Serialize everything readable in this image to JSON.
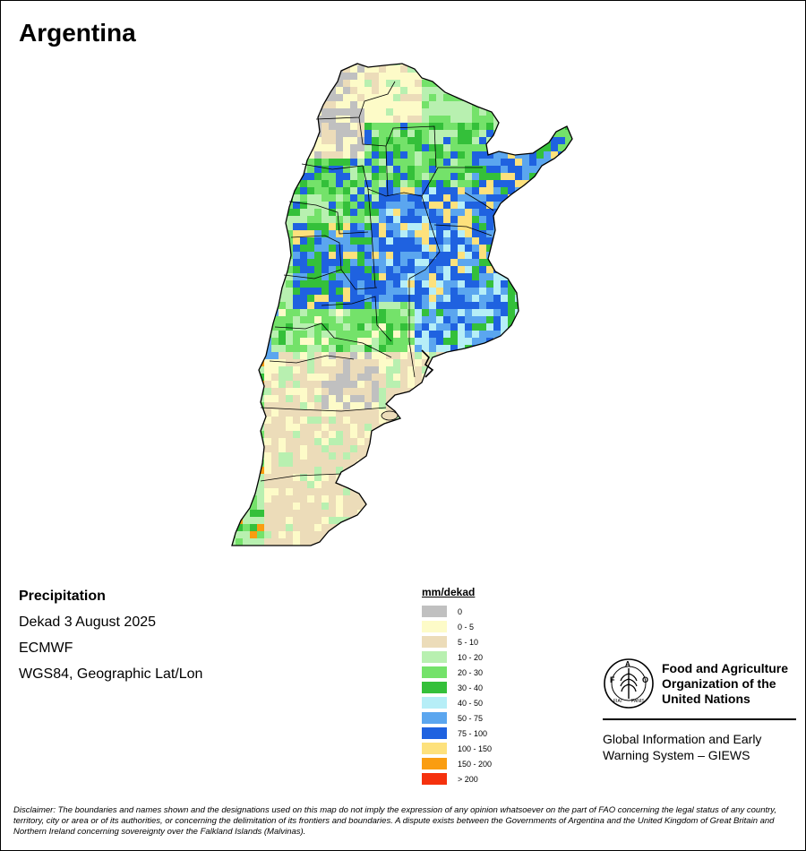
{
  "title": "Argentina",
  "map": {
    "country": "Argentina",
    "features": [
      "precipitation-raster",
      "province-boundaries",
      "country-outline",
      "rio-de-la-plata",
      "malvinas-islands"
    ]
  },
  "info": {
    "variable": "Precipitation",
    "period": "Dekad 3 August 2025",
    "source": "ECMWF",
    "projection": "WGS84, Geographic Lat/Lon"
  },
  "legend": {
    "title": "mm/dekad",
    "items": [
      {
        "label": "0",
        "color": "#c0c0c0"
      },
      {
        "label": "0 - 5",
        "color": "#fdfbc8"
      },
      {
        "label": "5 - 10",
        "color": "#ecdcb9"
      },
      {
        "label": "10 - 20",
        "color": "#b8f0b0"
      },
      {
        "label": "20 - 30",
        "color": "#74e26a"
      },
      {
        "label": "30 - 40",
        "color": "#34c03a"
      },
      {
        "label": "40 - 50",
        "color": "#b6eef7"
      },
      {
        "label": "50 - 75",
        "color": "#5ba6ef"
      },
      {
        "label": "75 - 100",
        "color": "#1f62e0"
      },
      {
        "label": "100 - 150",
        "color": "#fde17c"
      },
      {
        "label": "150 - 200",
        "color": "#fa9d11"
      },
      {
        "label": "> 200",
        "color": "#f5310d"
      }
    ]
  },
  "logo": {
    "org_line1": "Food and Agriculture",
    "org_line2": "Organization of the",
    "org_line3": "United Nations",
    "emblem_text": "FAO FIAT PANIS",
    "giews_line1": "Global Information and Early",
    "giews_line2": "Warning System – GIEWS"
  },
  "disclaimer": {
    "label": "Disclaimer:",
    "text": " The boundaries and names shown and the designations used on this map do not imply the expression of any opinion whatsoever on the part of FAO concerning the legal status of any country, territory, city or area or of its authorities, or concerning the delimitation of its frontiers and boundaries. A dispute exists between the Governments of Argentina and the United Kingdom of Great Britain and Northern Ireland concerning sovereignty over the Falkland Islands (Malvinas)."
  }
}
